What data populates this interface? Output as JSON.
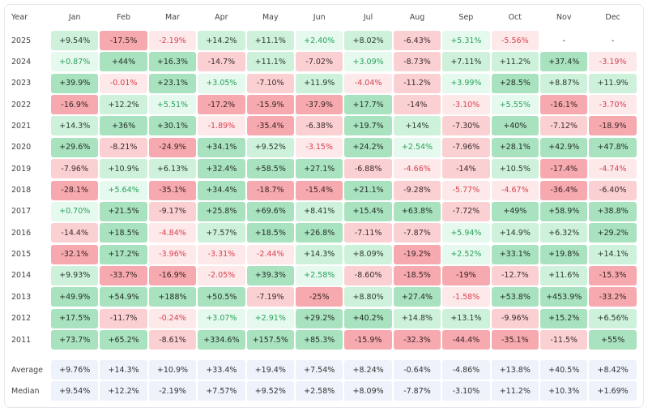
{
  "table": {
    "header": [
      "Year",
      "Jan",
      "Feb",
      "Mar",
      "Apr",
      "May",
      "Jun",
      "Jul",
      "Aug",
      "Sep",
      "Oct",
      "Nov",
      "Dec"
    ],
    "rows": [
      {
        "year": "2025",
        "cells": [
          "+9.54%",
          "-17.5%",
          "-2.19%",
          "+14.2%",
          "+11.1%",
          "+2.40%",
          "+8.02%",
          "-6.43%",
          "+5.31%",
          "-5.56%",
          "-",
          "-"
        ]
      },
      {
        "year": "2024",
        "cells": [
          "+0.87%",
          "+44%",
          "+16.3%",
          "-14.7%",
          "+11.1%",
          "-7.02%",
          "+3.09%",
          "-8.73%",
          "+7.11%",
          "+11.2%",
          "+37.4%",
          "-3.19%"
        ]
      },
      {
        "year": "2023",
        "cells": [
          "+39.9%",
          "-0.01%",
          "+23.1%",
          "+3.05%",
          "-7.10%",
          "+11.9%",
          "-4.04%",
          "-11.2%",
          "+3.99%",
          "+28.5%",
          "+8.87%",
          "+11.9%"
        ]
      },
      {
        "year": "2022",
        "cells": [
          "-16.9%",
          "+12.2%",
          "+5.51%",
          "-17.2%",
          "-15.9%",
          "-37.9%",
          "+17.7%",
          "-14%",
          "-3.10%",
          "+5.55%",
          "-16.1%",
          "-3.70%"
        ]
      },
      {
        "year": "2021",
        "cells": [
          "+14.3%",
          "+36%",
          "+30.1%",
          "-1.89%",
          "-35.4%",
          "-6.38%",
          "+19.7%",
          "+14%",
          "-7.30%",
          "+40%",
          "-7.12%",
          "-18.9%"
        ]
      },
      {
        "year": "2020",
        "cells": [
          "+29.6%",
          "-8.21%",
          "-24.9%",
          "+34.1%",
          "+9.52%",
          "-3.15%",
          "+24.2%",
          "+2.54%",
          "-7.96%",
          "+28.1%",
          "+42.9%",
          "+47.8%"
        ]
      },
      {
        "year": "2019",
        "cells": [
          "-7.96%",
          "+10.9%",
          "+6.13%",
          "+32.4%",
          "+58.5%",
          "+27.1%",
          "-6.88%",
          "-4.66%",
          "-14%",
          "+10.5%",
          "-17.4%",
          "-4.74%"
        ]
      },
      {
        "year": "2018",
        "cells": [
          "-28.1%",
          "+5.64%",
          "-35.1%",
          "+34.4%",
          "-18.7%",
          "-15.4%",
          "+21.1%",
          "-9.28%",
          "-5.77%",
          "-4.67%",
          "-36.4%",
          "-6.40%"
        ]
      },
      {
        "year": "2017",
        "cells": [
          "+0.70%",
          "+21.5%",
          "-9.17%",
          "+25.8%",
          "+69.6%",
          "+8.41%",
          "+15.4%",
          "+63.8%",
          "-7.72%",
          "+49%",
          "+58.9%",
          "+38.8%"
        ]
      },
      {
        "year": "2016",
        "cells": [
          "-14.4%",
          "+18.5%",
          "-4.84%",
          "+7.57%",
          "+18.5%",
          "+26.8%",
          "-7.11%",
          "-7.87%",
          "+5.94%",
          "+14.9%",
          "+6.32%",
          "+29.2%"
        ]
      },
      {
        "year": "2015",
        "cells": [
          "-32.1%",
          "+17.2%",
          "-3.96%",
          "-3.31%",
          "-2.44%",
          "+14.3%",
          "+8.09%",
          "-19.2%",
          "+2.52%",
          "+33.1%",
          "+19.8%",
          "+14.1%"
        ]
      },
      {
        "year": "2014",
        "cells": [
          "+9.93%",
          "-33.7%",
          "-16.9%",
          "-2.05%",
          "+39.3%",
          "+2.58%",
          "-8.60%",
          "-18.5%",
          "-19%",
          "-12.7%",
          "+11.6%",
          "-15.3%"
        ]
      },
      {
        "year": "2013",
        "cells": [
          "+49.9%",
          "+54.9%",
          "+188%",
          "+50.5%",
          "-7.19%",
          "-25%",
          "+8.80%",
          "+27.4%",
          "-1.58%",
          "+53.8%",
          "+453.9%",
          "-33.2%"
        ]
      },
      {
        "year": "2012",
        "cells": [
          "+17.5%",
          "-11.7%",
          "-0.24%",
          "+3.07%",
          "+2.91%",
          "+29.2%",
          "+40.2%",
          "+14.8%",
          "+13.1%",
          "-9.96%",
          "+15.2%",
          "+6.56%"
        ]
      },
      {
        "year": "2011",
        "cells": [
          "+73.7%",
          "+65.2%",
          "-8.61%",
          "+334.6%",
          "+157.5%",
          "+85.3%",
          "-15.9%",
          "-32.3%",
          "-44.4%",
          "-35.1%",
          "-11.5%",
          "+55%"
        ]
      }
    ],
    "summary": [
      {
        "label": "Average",
        "cells": [
          "+9.76%",
          "+14.3%",
          "+10.9%",
          "+33.4%",
          "+19.4%",
          "+7.54%",
          "+8.24%",
          "-0.64%",
          "-4.86%",
          "+13.8%",
          "+40.5%",
          "+8.42%"
        ]
      },
      {
        "label": "Median",
        "cells": [
          "+9.54%",
          "+12.2%",
          "-2.19%",
          "+7.57%",
          "+9.52%",
          "+2.58%",
          "+8.09%",
          "-7.87%",
          "-3.10%",
          "+11.2%",
          "+10.3%",
          "+1.69%"
        ]
      }
    ]
  }
}
